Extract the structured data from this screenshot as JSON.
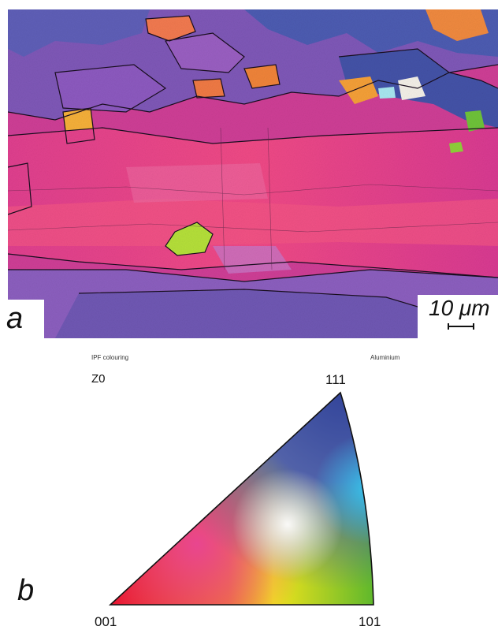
{
  "panel_a": {
    "label": "a",
    "scale_bar": {
      "text": "10 μm"
    }
  },
  "panel_b": {
    "label": "b",
    "caption": "IPF colouring",
    "material": "Aluminium",
    "direction": "Z0",
    "poles": {
      "top": "111",
      "left": "001",
      "right": "101"
    }
  },
  "colors": {
    "red": "#e8102a",
    "green": "#6fbf2a",
    "blue": "#3c4fa0",
    "pink": "#d8398f",
    "yellow": "#f2e31c",
    "cyan": "#3ec6ee"
  }
}
